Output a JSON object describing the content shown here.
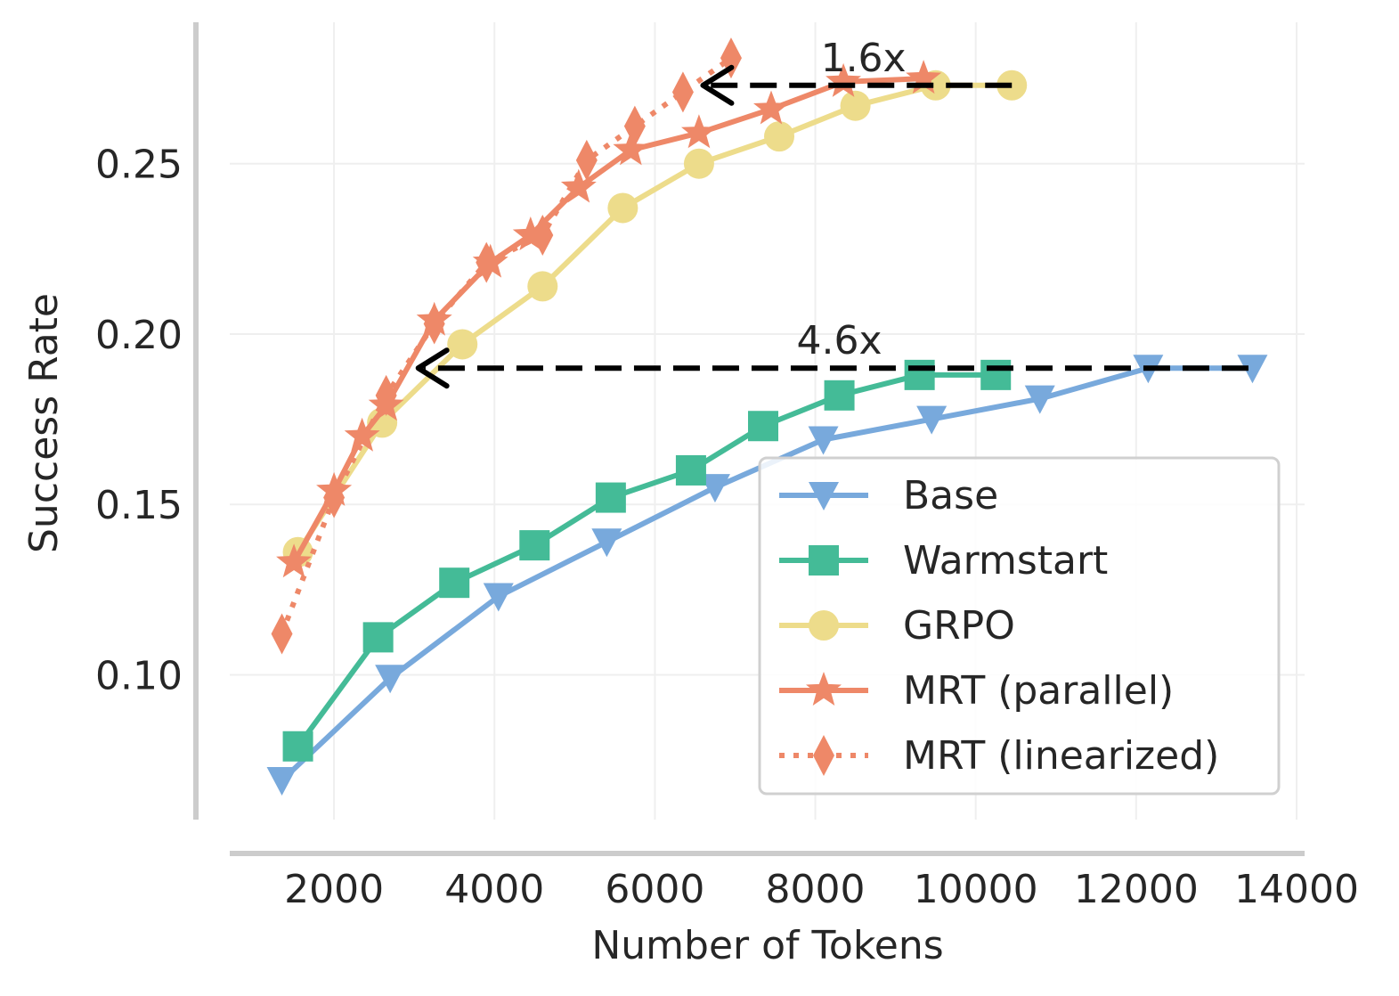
{
  "chart_data": {
    "type": "line",
    "title": "",
    "xlabel": "Number of Tokens",
    "ylabel": "Success Rate",
    "xlim": [
      700,
      14100
    ],
    "ylim": [
      0.0575,
      0.2915
    ],
    "xticks": [
      2000,
      4000,
      6000,
      8000,
      10000,
      12000,
      14000
    ],
    "xtick_labels": [
      "2000",
      "4000",
      "6000",
      "8000",
      "10000",
      "12000",
      "14000"
    ],
    "yticks": [
      0.1,
      0.15,
      0.2,
      0.25
    ],
    "ytick_labels": [
      "0.10",
      "0.15",
      "0.20",
      "0.25"
    ],
    "grid": true,
    "legend_position": "lower-right",
    "series": [
      {
        "name": "Base",
        "color": "#78a9dc",
        "marker": "triangle-down",
        "line_style": "solid",
        "x": [
          1350,
          2700,
          4050,
          5400,
          6750,
          8100,
          9450,
          10800,
          12150,
          13450
        ],
        "y": [
          0.069,
          0.099,
          0.123,
          0.139,
          0.155,
          0.169,
          0.175,
          0.181,
          0.19,
          0.19
        ]
      },
      {
        "name": "Warmstart",
        "color": "#44bb97",
        "marker": "square",
        "line_style": "solid",
        "x": [
          1550,
          2550,
          3500,
          4500,
          5450,
          6450,
          7350,
          8300,
          9300,
          10250
        ],
        "y": [
          0.079,
          0.111,
          0.127,
          0.138,
          0.152,
          0.16,
          0.173,
          0.182,
          0.188,
          0.188
        ]
      },
      {
        "name": "GRPO",
        "color": "#eddc8b",
        "marker": "circle",
        "line_style": "solid",
        "x": [
          1550,
          2600,
          3600,
          4600,
          5600,
          6550,
          7550,
          8500,
          9500,
          10450
        ],
        "y": [
          0.136,
          0.174,
          0.197,
          0.214,
          0.237,
          0.25,
          0.258,
          0.267,
          0.273,
          0.273
        ]
      },
      {
        "name": "MRT (parallel)",
        "color": "#ee8868",
        "marker": "star",
        "line_style": "solid",
        "x": [
          1500,
          2000,
          2350,
          2650,
          3250,
          3950,
          4450,
          5050,
          5700,
          6550,
          7450,
          8350,
          9350
        ],
        "y": [
          0.133,
          0.154,
          0.17,
          0.179,
          0.204,
          0.221,
          0.229,
          0.243,
          0.254,
          0.259,
          0.266,
          0.274,
          0.275
        ]
      },
      {
        "name": "MRT (linearized)",
        "color": "#ee8868",
        "marker": "diamond",
        "line_style": "dotted",
        "x": [
          1350,
          2000,
          2650,
          3250,
          3900,
          4600,
          5150,
          5750,
          6350,
          6950
        ],
        "y": [
          0.112,
          0.152,
          0.182,
          0.203,
          0.221,
          0.229,
          0.251,
          0.261,
          0.271,
          0.281
        ]
      }
    ],
    "annotations": [
      {
        "text": "1.6x",
        "x_from": 10450,
        "x_to": 6600,
        "y": 0.273,
        "label_x": 8600
      },
      {
        "text": "4.6x",
        "x_from": 13400,
        "x_to": 3050,
        "y": 0.19,
        "label_x": 8300
      }
    ]
  }
}
